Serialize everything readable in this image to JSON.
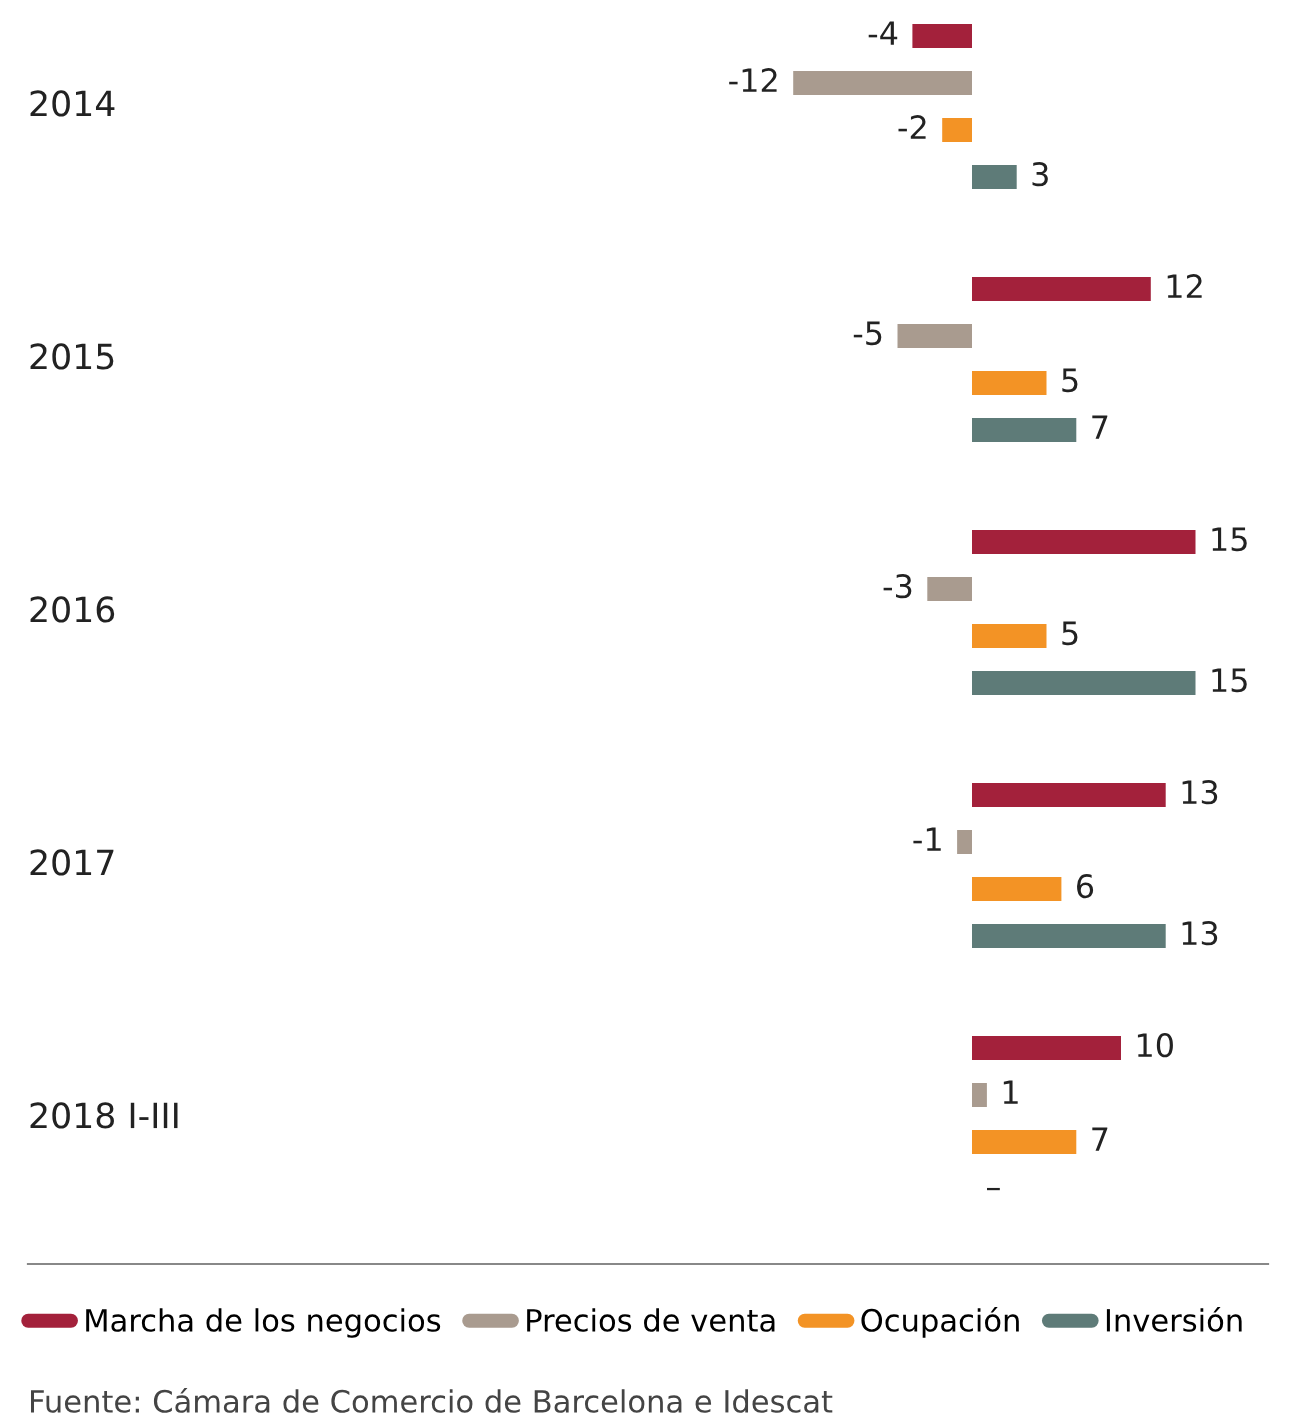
{
  "chart_data": {
    "type": "bar",
    "orientation": "horizontal",
    "categories": [
      "2014",
      "2015",
      "2016",
      "2017",
      "2018 I-III"
    ],
    "series": [
      {
        "name": "Marcha de los negocios",
        "color": "#a3213b",
        "values": [
          -4,
          12,
          15,
          13,
          10
        ],
        "value_labels": [
          "-4",
          "12",
          "15",
          "13",
          "10"
        ]
      },
      {
        "name": "Precios de venta",
        "color": "#a99b8f",
        "values": [
          -12,
          -5,
          -3,
          -1,
          1
        ],
        "value_labels": [
          "-12",
          "-5",
          "-3",
          "-1",
          "1"
        ]
      },
      {
        "name": "Ocupación",
        "color": "#f39325",
        "values": [
          -2,
          5,
          5,
          6,
          7
        ],
        "value_labels": [
          "-2",
          "5",
          "5",
          "6",
          "7"
        ]
      },
      {
        "name": "Inversión",
        "color": "#5e7b78",
        "values": [
          3,
          7,
          15,
          13,
          null
        ],
        "value_labels": [
          "3",
          "7",
          "15",
          "13",
          "–"
        ]
      }
    ],
    "legend": "bottom",
    "annotations": [
      "Fuente: Cámara de Comercio de Barcelona e Idescat"
    ]
  }
}
